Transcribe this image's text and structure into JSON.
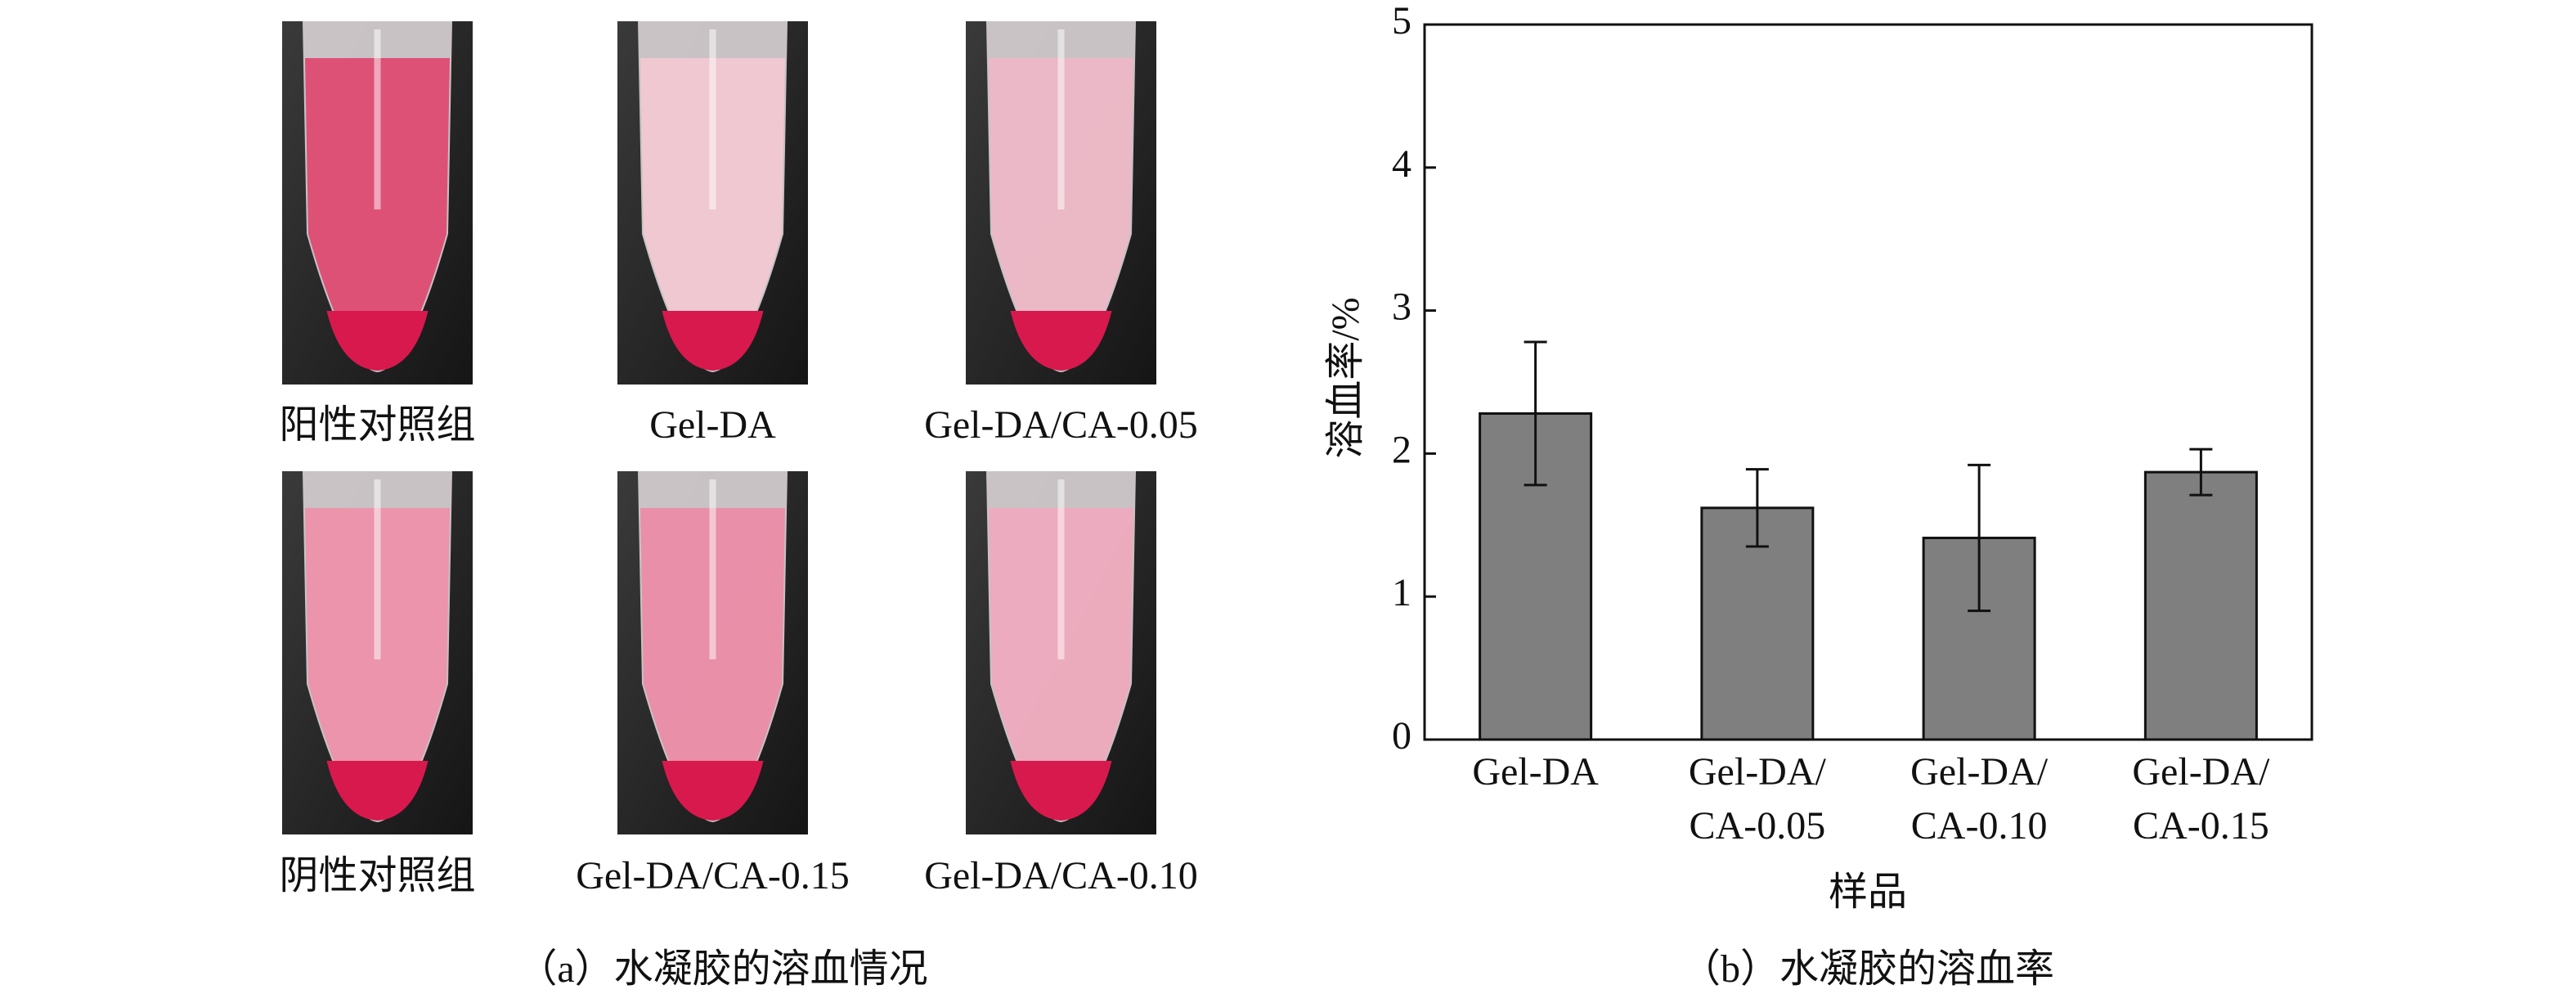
{
  "photo_panel": {
    "labels": [
      "阳性对照组",
      "Gel-DA",
      "Gel-DA/CA-0.05",
      "阴性对照组",
      "Gel-DA/CA-0.15",
      "Gel-DA/CA-0.10"
    ],
    "caption": "（a）水凝胶的溶血情况"
  },
  "chart_data": {
    "type": "bar",
    "categories": [
      "Gel-DA",
      "Gel-DA/\nCA-0.05",
      "Gel-DA/\nCA-0.10",
      "Gel-DA/\nCA-0.15"
    ],
    "values": [
      2.28,
      1.62,
      1.41,
      1.87
    ],
    "errors": [
      0.5,
      0.27,
      0.51,
      0.16
    ],
    "color": "#7f7f7f",
    "ylim": [
      0,
      5
    ],
    "yticks": [
      0,
      1,
      2,
      3,
      4,
      5
    ],
    "ylabel": "溶血率/%",
    "xlabel": "样品",
    "caption": "（b）水凝胶的溶血率"
  }
}
